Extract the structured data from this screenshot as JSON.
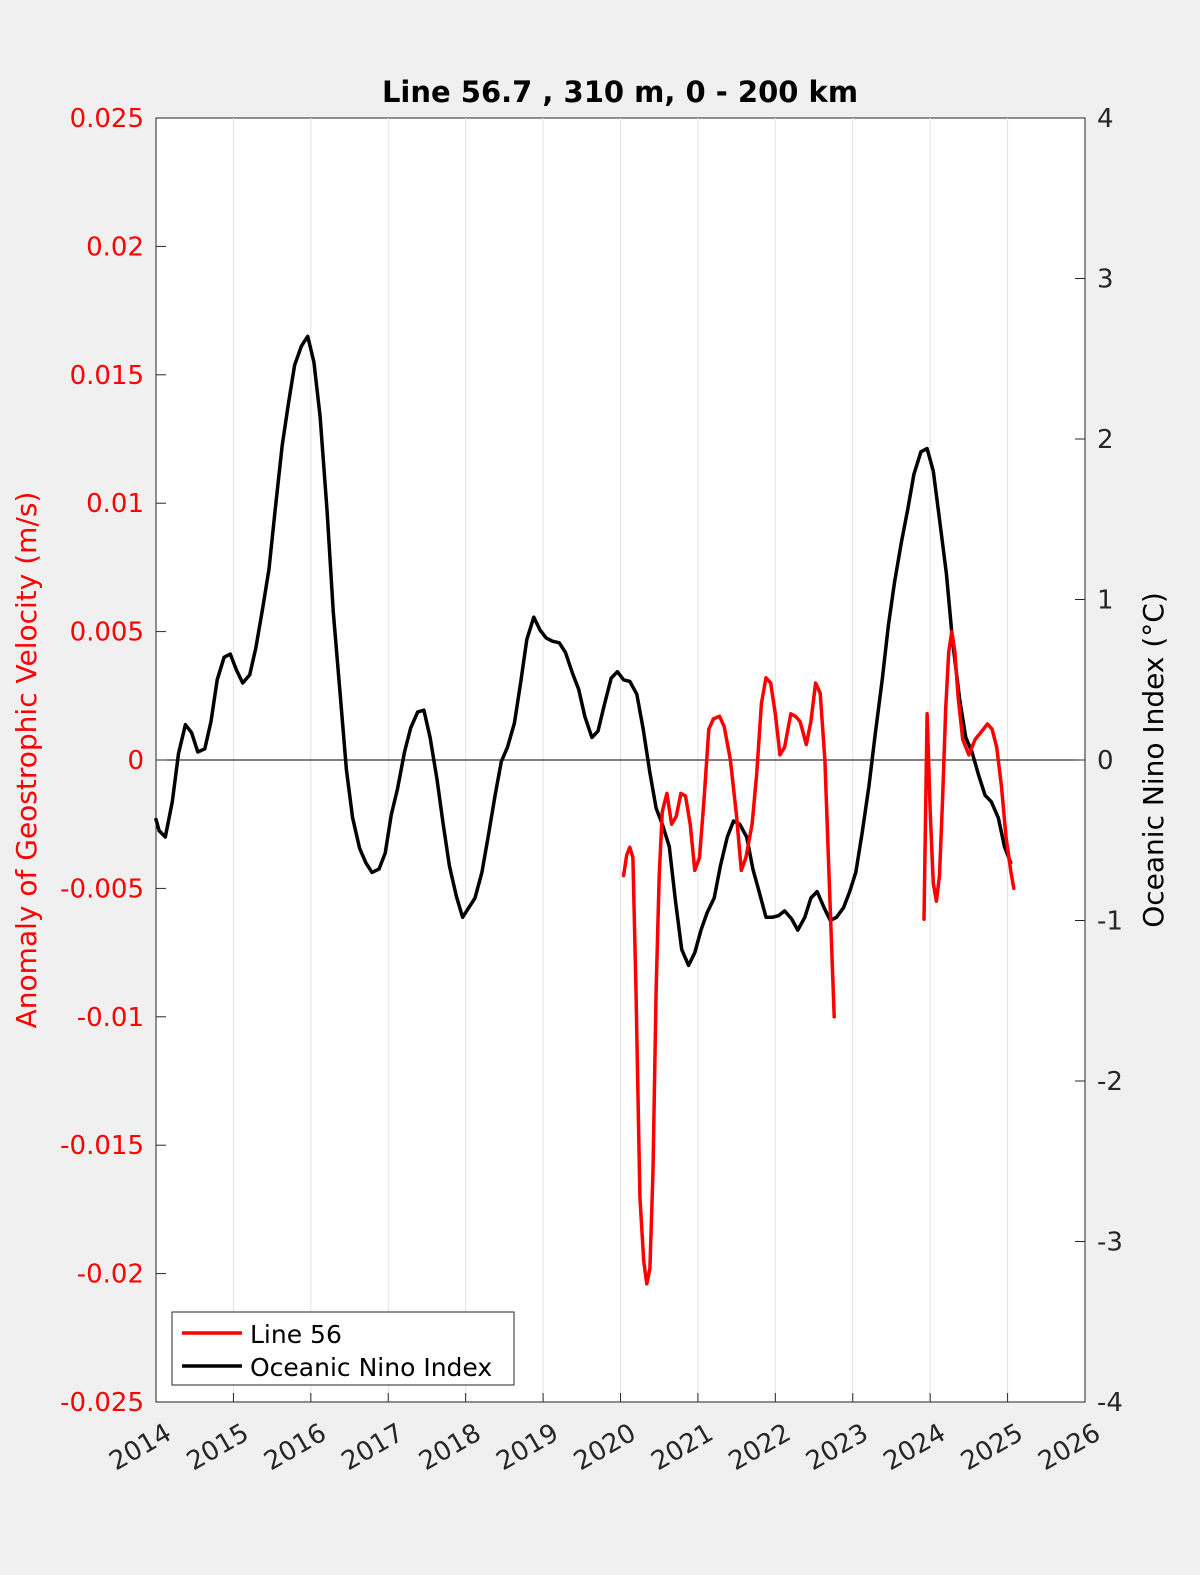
{
  "chart_data": {
    "type": "line",
    "title": "Line 56.7 , 310 m, 0 - 200 km",
    "xlabel": "",
    "xlim": [
      2014,
      2026
    ],
    "x_ticks": [
      "2014",
      "2015",
      "2016",
      "2017",
      "2018",
      "2019",
      "2020",
      "2021",
      "2022",
      "2023",
      "2024",
      "2025",
      "2026"
    ],
    "grid_x": true,
    "left_axis": {
      "label": "Anomaly of Geostrophic Velocity (m/s)",
      "color": "#ff0000",
      "ylim": [
        -0.025,
        0.025
      ],
      "ticks": [
        "-0.025",
        "-0.02",
        "-0.015",
        "-0.01",
        "-0.005",
        "0",
        "0.005",
        "0.01",
        "0.015",
        "0.02",
        "0.025"
      ]
    },
    "right_axis": {
      "label": "Oceanic Nino Index (°C)",
      "color": "#000000",
      "ylim": [
        -4,
        4
      ],
      "ticks": [
        "-4",
        "-3",
        "-2",
        "-1",
        "0",
        "1",
        "2",
        "3",
        "4"
      ]
    },
    "legend": {
      "placement": "bottom-left",
      "entries": [
        "Line 56",
        "Oceanic Nino Index"
      ]
    },
    "series": [
      {
        "name": "Line 56",
        "axis": "left",
        "color": "#ff0000",
        "segments": [
          [
            [
              2020.04,
              -0.0045
            ],
            [
              2020.08,
              -0.0037
            ],
            [
              2020.12,
              -0.0034
            ],
            [
              2020.16,
              -0.0038
            ],
            [
              2020.2,
              -0.009
            ],
            [
              2020.25,
              -0.017
            ],
            [
              2020.3,
              -0.0195
            ],
            [
              2020.34,
              -0.0204
            ],
            [
              2020.38,
              -0.0198
            ],
            [
              2020.42,
              -0.016
            ],
            [
              2020.46,
              -0.009
            ],
            [
              2020.5,
              -0.0045
            ],
            [
              2020.54,
              -0.002
            ],
            [
              2020.6,
              -0.0013
            ],
            [
              2020.66,
              -0.0025
            ],
            [
              2020.72,
              -0.0022
            ],
            [
              2020.78,
              -0.0013
            ],
            [
              2020.84,
              -0.0014
            ],
            [
              2020.9,
              -0.0025
            ],
            [
              2020.96,
              -0.0043
            ],
            [
              2021.02,
              -0.0038
            ],
            [
              2021.08,
              -0.0015
            ],
            [
              2021.14,
              0.0012
            ],
            [
              2021.2,
              0.0016
            ],
            [
              2021.28,
              0.0017
            ],
            [
              2021.34,
              0.0013
            ],
            [
              2021.42,
              0.0
            ],
            [
              2021.5,
              -0.0022
            ],
            [
              2021.56,
              -0.0043
            ],
            [
              2021.62,
              -0.0038
            ],
            [
              2021.7,
              -0.0025
            ],
            [
              2021.76,
              -0.0005
            ],
            [
              2021.82,
              0.0022
            ],
            [
              2021.88,
              0.0032
            ],
            [
              2021.94,
              0.003
            ],
            [
              2022.0,
              0.0018
            ],
            [
              2022.06,
              0.0002
            ],
            [
              2022.12,
              0.0005
            ],
            [
              2022.2,
              0.0018
            ],
            [
              2022.26,
              0.0017
            ],
            [
              2022.32,
              0.0015
            ],
            [
              2022.4,
              0.0006
            ],
            [
              2022.46,
              0.0015
            ],
            [
              2022.52,
              0.003
            ],
            [
              2022.58,
              0.0026
            ],
            [
              2022.64,
              0.0
            ],
            [
              2022.7,
              -0.005
            ],
            [
              2022.76,
              -0.01
            ]
          ],
          [
            [
              2023.92,
              -0.0062
            ],
            [
              2023.96,
              0.0018
            ],
            [
              2024.0,
              -0.002
            ],
            [
              2024.04,
              -0.0048
            ],
            [
              2024.08,
              -0.0055
            ],
            [
              2024.12,
              -0.0045
            ],
            [
              2024.16,
              -0.0015
            ],
            [
              2024.2,
              0.002
            ],
            [
              2024.24,
              0.0042
            ],
            [
              2024.28,
              0.005
            ],
            [
              2024.32,
              0.0042
            ],
            [
              2024.36,
              0.0025
            ],
            [
              2024.42,
              0.0008
            ],
            [
              2024.5,
              0.0002
            ],
            [
              2024.58,
              0.0008
            ],
            [
              2024.66,
              0.0011
            ],
            [
              2024.74,
              0.0014
            ],
            [
              2024.8,
              0.0012
            ],
            [
              2024.86,
              0.0005
            ],
            [
              2024.92,
              -0.001
            ],
            [
              2024.98,
              -0.003
            ],
            [
              2025.04,
              -0.0043
            ],
            [
              2025.08,
              -0.005
            ]
          ]
        ]
      },
      {
        "name": "Oceanic Nino Index",
        "axis": "right",
        "color": "#000000",
        "segments": [
          [
            [
              2014.0,
              -0.37
            ],
            [
              2014.04,
              -0.44
            ],
            [
              2014.12,
              -0.48
            ],
            [
              2014.21,
              -0.26
            ],
            [
              2014.29,
              0.04
            ],
            [
              2014.38,
              0.22
            ],
            [
              2014.46,
              0.17
            ],
            [
              2014.54,
              0.05
            ],
            [
              2014.63,
              0.07
            ],
            [
              2014.71,
              0.24
            ],
            [
              2014.79,
              0.5
            ],
            [
              2014.88,
              0.64
            ],
            [
              2014.96,
              0.66
            ],
            [
              2015.04,
              0.56
            ],
            [
              2015.12,
              0.48
            ],
            [
              2015.21,
              0.53
            ],
            [
              2015.29,
              0.7
            ],
            [
              2015.38,
              0.95
            ],
            [
              2015.46,
              1.19
            ],
            [
              2015.54,
              1.56
            ],
            [
              2015.63,
              1.96
            ],
            [
              2015.71,
              2.22
            ],
            [
              2015.79,
              2.46
            ],
            [
              2015.88,
              2.58
            ],
            [
              2015.96,
              2.64
            ],
            [
              2016.04,
              2.48
            ],
            [
              2016.12,
              2.14
            ],
            [
              2016.21,
              1.55
            ],
            [
              2016.29,
              0.92
            ],
            [
              2016.38,
              0.4
            ],
            [
              2016.46,
              -0.06
            ],
            [
              2016.54,
              -0.36
            ],
            [
              2016.63,
              -0.55
            ],
            [
              2016.71,
              -0.64
            ],
            [
              2016.79,
              -0.7
            ],
            [
              2016.88,
              -0.68
            ],
            [
              2016.96,
              -0.58
            ],
            [
              2017.04,
              -0.34
            ],
            [
              2017.12,
              -0.18
            ],
            [
              2017.21,
              0.05
            ],
            [
              2017.29,
              0.2
            ],
            [
              2017.38,
              0.3
            ],
            [
              2017.46,
              0.31
            ],
            [
              2017.54,
              0.14
            ],
            [
              2017.63,
              -0.12
            ],
            [
              2017.71,
              -0.4
            ],
            [
              2017.79,
              -0.66
            ],
            [
              2017.88,
              -0.85
            ],
            [
              2017.96,
              -0.98
            ],
            [
              2018.04,
              -0.92
            ],
            [
              2018.12,
              -0.86
            ],
            [
              2018.21,
              -0.7
            ],
            [
              2018.29,
              -0.48
            ],
            [
              2018.38,
              -0.22
            ],
            [
              2018.46,
              -0.01
            ],
            [
              2018.54,
              0.08
            ],
            [
              2018.63,
              0.23
            ],
            [
              2018.71,
              0.48
            ],
            [
              2018.79,
              0.75
            ],
            [
              2018.88,
              0.89
            ],
            [
              2018.96,
              0.81
            ],
            [
              2019.04,
              0.76
            ],
            [
              2019.12,
              0.74
            ],
            [
              2019.21,
              0.73
            ],
            [
              2019.29,
              0.67
            ],
            [
              2019.38,
              0.54
            ],
            [
              2019.46,
              0.44
            ],
            [
              2019.54,
              0.27
            ],
            [
              2019.63,
              0.14
            ],
            [
              2019.71,
              0.18
            ],
            [
              2019.79,
              0.34
            ],
            [
              2019.88,
              0.51
            ],
            [
              2019.96,
              0.55
            ],
            [
              2020.04,
              0.5
            ],
            [
              2020.12,
              0.49
            ],
            [
              2020.21,
              0.41
            ],
            [
              2020.29,
              0.2
            ],
            [
              2020.38,
              -0.08
            ],
            [
              2020.46,
              -0.3
            ],
            [
              2020.54,
              -0.4
            ],
            [
              2020.63,
              -0.54
            ],
            [
              2020.71,
              -0.88
            ],
            [
              2020.79,
              -1.18
            ],
            [
              2020.88,
              -1.28
            ],
            [
              2020.96,
              -1.2
            ],
            [
              2021.04,
              -1.06
            ],
            [
              2021.12,
              -0.95
            ],
            [
              2021.21,
              -0.86
            ],
            [
              2021.29,
              -0.66
            ],
            [
              2021.38,
              -0.48
            ],
            [
              2021.46,
              -0.38
            ],
            [
              2021.54,
              -0.4
            ],
            [
              2021.63,
              -0.48
            ],
            [
              2021.71,
              -0.68
            ],
            [
              2021.79,
              -0.82
            ],
            [
              2021.88,
              -0.98
            ],
            [
              2021.96,
              -0.98
            ],
            [
              2022.04,
              -0.97
            ],
            [
              2022.12,
              -0.94
            ],
            [
              2022.21,
              -0.99
            ],
            [
              2022.29,
              -1.06
            ],
            [
              2022.38,
              -0.98
            ],
            [
              2022.46,
              -0.86
            ],
            [
              2022.54,
              -0.82
            ],
            [
              2022.63,
              -0.92
            ],
            [
              2022.71,
              -1.0
            ],
            [
              2022.79,
              -0.98
            ],
            [
              2022.88,
              -0.92
            ],
            [
              2022.96,
              -0.82
            ],
            [
              2023.04,
              -0.7
            ],
            [
              2023.12,
              -0.46
            ],
            [
              2023.21,
              -0.16
            ],
            [
              2023.29,
              0.16
            ],
            [
              2023.38,
              0.5
            ],
            [
              2023.46,
              0.84
            ],
            [
              2023.54,
              1.11
            ],
            [
              2023.63,
              1.36
            ],
            [
              2023.71,
              1.56
            ],
            [
              2023.79,
              1.78
            ],
            [
              2023.88,
              1.92
            ],
            [
              2023.96,
              1.94
            ],
            [
              2024.04,
              1.8
            ],
            [
              2024.12,
              1.5
            ],
            [
              2024.21,
              1.16
            ],
            [
              2024.29,
              0.74
            ],
            [
              2024.38,
              0.38
            ],
            [
              2024.46,
              0.14
            ],
            [
              2024.54,
              0.05
            ],
            [
              2024.63,
              -0.1
            ],
            [
              2024.71,
              -0.22
            ],
            [
              2024.79,
              -0.26
            ],
            [
              2024.88,
              -0.36
            ],
            [
              2024.96,
              -0.54
            ],
            [
              2025.04,
              -0.64
            ]
          ]
        ]
      }
    ]
  }
}
